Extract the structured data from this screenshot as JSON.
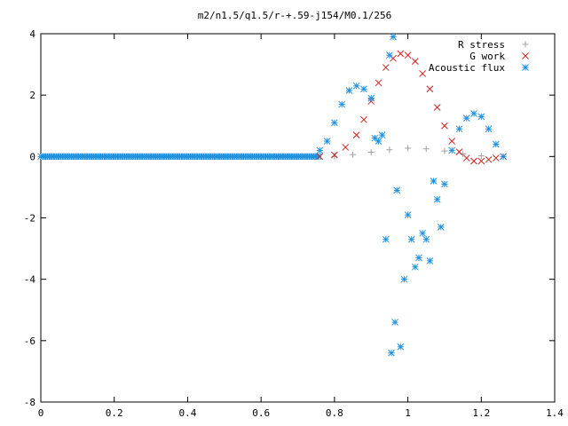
{
  "chart_data": {
    "type": "scatter",
    "title": "m2/n1.5/q1.5/r-+.59-j154/M0.1/256",
    "xlabel": "",
    "ylabel": "",
    "xlim": [
      0,
      1.4
    ],
    "ylim": [
      -8,
      4
    ],
    "xticks": [
      "0",
      "0.2",
      "0.4",
      "0.6",
      "0.8",
      "1",
      "1.2",
      "1.4"
    ],
    "yticks": [
      "-8",
      "-6",
      "-4",
      "-2",
      "0",
      "2",
      "4"
    ],
    "grid": false,
    "legend_position": "top-right",
    "series": [
      {
        "name": "R stress",
        "marker": "plus",
        "color": "#a0a0a0",
        "x": [
          0.8,
          0.85,
          0.9,
          0.95,
          1.0,
          1.05,
          1.1,
          1.15,
          1.2,
          1.26
        ],
        "y": [
          0.0,
          0.06,
          0.14,
          0.22,
          0.27,
          0.25,
          0.18,
          0.08,
          0.02,
          0.0
        ]
      },
      {
        "name": "G work",
        "marker": "cross",
        "color": "#d02020",
        "x": [
          0.76,
          0.8,
          0.83,
          0.86,
          0.88,
          0.9,
          0.92,
          0.94,
          0.96,
          0.98,
          1.0,
          1.02,
          1.04,
          1.06,
          1.08,
          1.1,
          1.12,
          1.14,
          1.16,
          1.18,
          1.2,
          1.22,
          1.24,
          1.26
        ],
        "y": [
          0.0,
          0.05,
          0.3,
          0.7,
          1.2,
          1.8,
          2.4,
          2.9,
          3.2,
          3.35,
          3.3,
          3.1,
          2.7,
          2.2,
          1.6,
          1.0,
          0.5,
          0.15,
          -0.05,
          -0.15,
          -0.15,
          -0.1,
          -0.05,
          0.0
        ]
      },
      {
        "name": "Acoustic flux",
        "marker": "star",
        "color": "#1e90e0",
        "x": [
          0.76,
          0.78,
          0.8,
          0.82,
          0.84,
          0.86,
          0.88,
          0.9,
          0.91,
          0.92,
          0.93,
          0.94,
          0.95,
          0.955,
          0.96,
          0.965,
          0.97,
          0.98,
          0.99,
          1.0,
          1.01,
          1.02,
          1.03,
          1.04,
          1.05,
          1.06,
          1.07,
          1.08,
          1.09,
          1.1,
          1.12,
          1.14,
          1.16,
          1.18,
          1.2,
          1.22,
          1.24,
          1.26
        ],
        "y": [
          0.2,
          0.5,
          1.1,
          1.7,
          2.15,
          2.3,
          2.2,
          1.9,
          0.6,
          0.5,
          0.7,
          -2.7,
          3.3,
          -6.4,
          3.9,
          -5.4,
          -1.1,
          -6.2,
          -4.0,
          -1.9,
          -2.7,
          -3.6,
          -3.3,
          -2.5,
          -2.7,
          -3.4,
          -0.8,
          -1.4,
          -2.3,
          -0.9,
          0.2,
          0.9,
          1.25,
          1.4,
          1.3,
          0.9,
          0.4,
          0.0
        ]
      }
    ]
  }
}
